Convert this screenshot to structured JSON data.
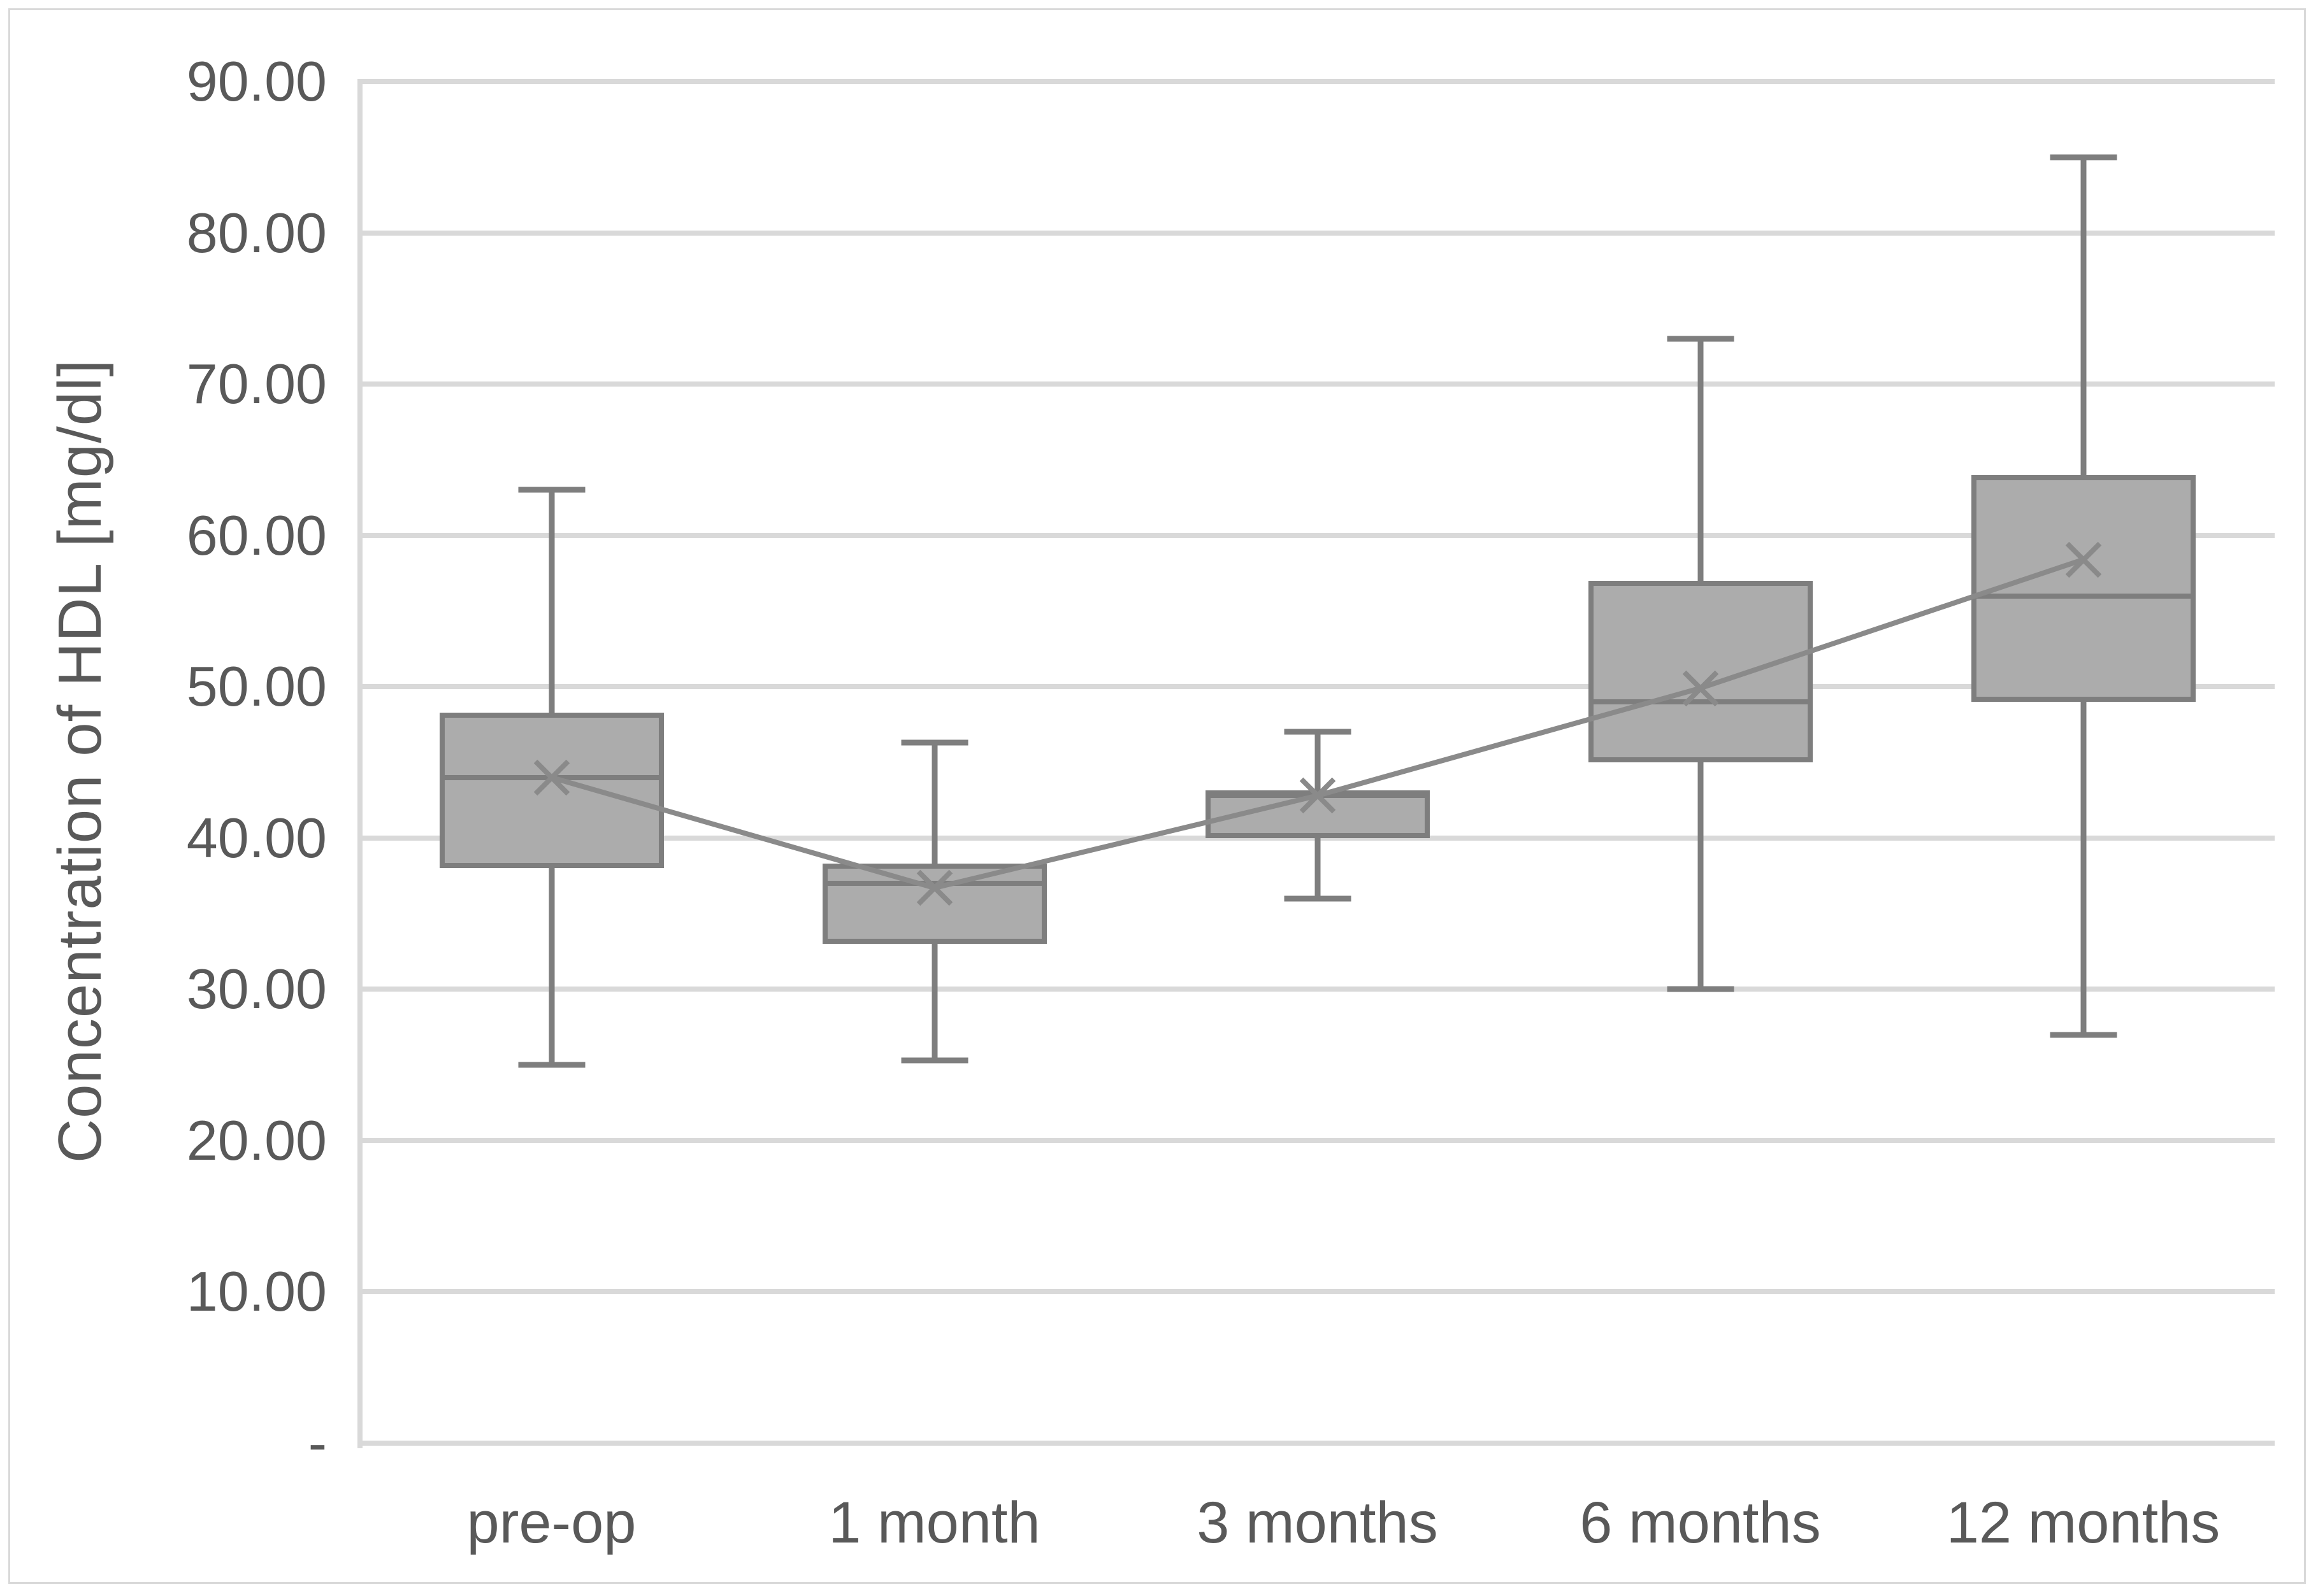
{
  "chart_data": {
    "type": "boxplot",
    "title": "",
    "xlabel": "",
    "ylabel": "Concentration of HDL [mg/dl]",
    "ylim": [
      0,
      90
    ],
    "y_tick_step": 10,
    "grid": true,
    "legend": null,
    "y_ticks": [
      {
        "label": "90.00",
        "value": 90
      },
      {
        "label": "80.00",
        "value": 80
      },
      {
        "label": "70.00",
        "value": 70
      },
      {
        "label": "60.00",
        "value": 60
      },
      {
        "label": "50.00",
        "value": 50
      },
      {
        "label": "40.00",
        "value": 40
      },
      {
        "label": "30.00",
        "value": 30
      },
      {
        "label": "20.00",
        "value": 20
      },
      {
        "label": "10.00",
        "value": 10
      },
      {
        "label": "-",
        "value": 0
      }
    ],
    "categories": [
      "pre-op",
      "1 month",
      "3 months",
      "6 months",
      "12 months"
    ],
    "series": [
      {
        "category": "pre-op",
        "min": 25,
        "q1": 38,
        "median": 44,
        "q3": 48.3,
        "max": 63,
        "mean": 44
      },
      {
        "category": "1 month",
        "min": 25.3,
        "q1": 33,
        "median": 37,
        "q3": 38.3,
        "max": 46.3,
        "mean": 36.7
      },
      {
        "category": "3 months",
        "min": 36,
        "q1": 40,
        "median": 43,
        "q3": 43,
        "max": 47,
        "mean": 42.8
      },
      {
        "category": "6 months",
        "min": 30,
        "q1": 45,
        "median": 49,
        "q3": 57,
        "max": 73,
        "mean": 49.9
      },
      {
        "category": "12 months",
        "min": 27,
        "q1": 49,
        "median": 56,
        "q3": 64,
        "max": 85,
        "mean": 58.4
      }
    ],
    "colors": {
      "box_fill": "#acacac",
      "box_border": "#7e7e7e",
      "whisker": "#7e7e7e",
      "mean_marker": "#8a8a8a",
      "mean_connector": "#8a8a8a",
      "gridline": "#d9d9d9",
      "text": "#595959"
    }
  }
}
